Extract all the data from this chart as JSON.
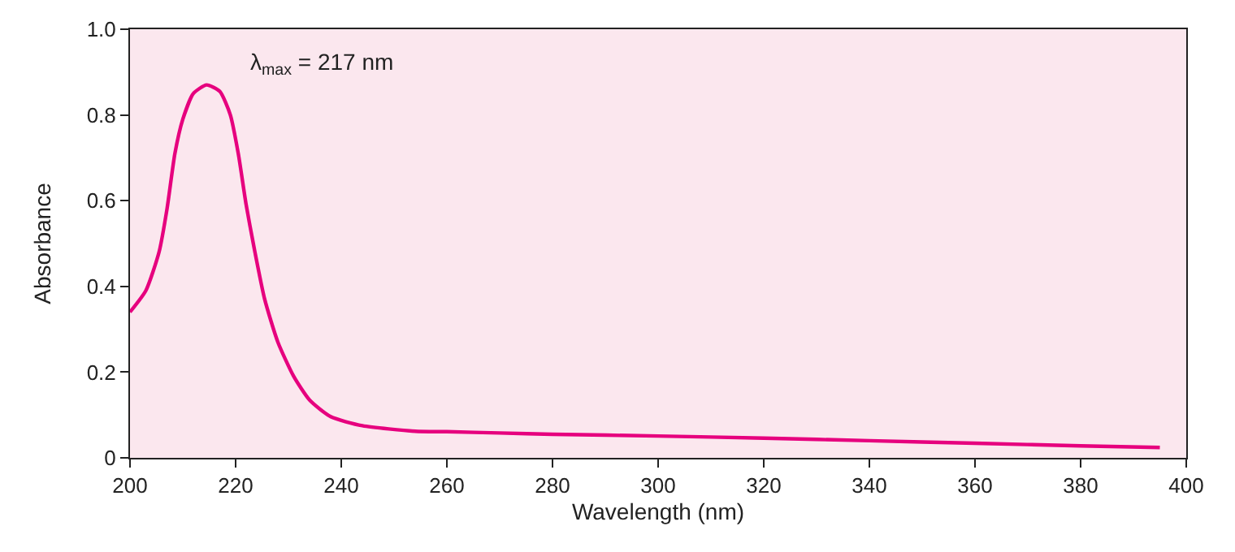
{
  "chart_data": {
    "type": "line",
    "xlabel": "Wavelength (nm)",
    "ylabel": "Absorbance",
    "annotations": [
      "λ$_{max}$ = 217 nm"
    ],
    "x": [
      200,
      203,
      205.5,
      207,
      208.5,
      210,
      212,
      214.5,
      217,
      219,
      220.5,
      222,
      223.5,
      225.5,
      228,
      231,
      234,
      238,
      244,
      254,
      260,
      270,
      280,
      300,
      320,
      340,
      360,
      380,
      395
    ],
    "series": [
      {
        "color": "#e6007e",
        "values": [
          0.34,
          0.39,
          0.48,
          0.58,
          0.71,
          0.79,
          0.85,
          0.87,
          0.855,
          0.8,
          0.71,
          0.59,
          0.49,
          0.37,
          0.27,
          0.19,
          0.135,
          0.096,
          0.075,
          0.062,
          0.061,
          0.058,
          0.055,
          0.051,
          0.046,
          0.04,
          0.034,
          0.028,
          0.024
        ]
      }
    ],
    "xlim": [
      200,
      400
    ],
    "xticks": [
      200,
      220,
      240,
      260,
      280,
      300,
      320,
      340,
      360,
      380,
      400
    ],
    "ylim": [
      0,
      1
    ],
    "yticks": [
      0,
      0.2,
      0.4,
      0.6,
      0.8,
      {
        "value": 1,
        "label": "1.0"
      }
    ],
    "grid": false,
    "legend": false,
    "marker": "none",
    "line_style": "solid"
  }
}
